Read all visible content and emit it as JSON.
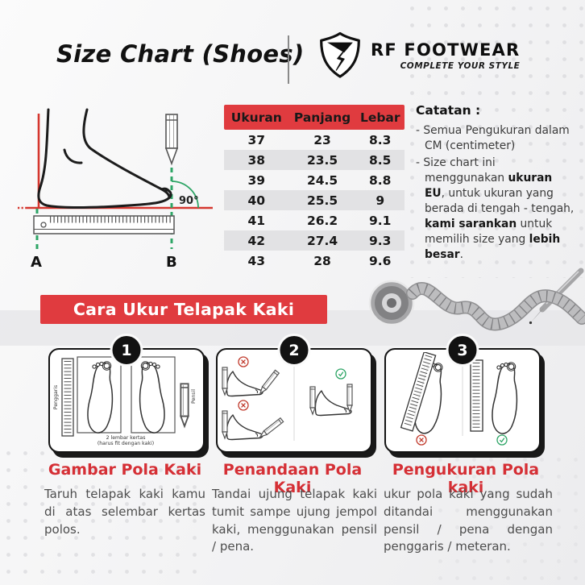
{
  "header": {
    "title": "Size Chart (Shoes)",
    "brand": "RF FOOTWEAR",
    "tagline": "COMPLETE YOUR STYLE"
  },
  "measure_diagram": {
    "angle_label": "90°",
    "point_a": "A",
    "point_b": "B"
  },
  "size_table": {
    "columns": [
      "Ukuran",
      "Panjang",
      "Lebar"
    ],
    "rows": [
      [
        "37",
        "23",
        "8.3"
      ],
      [
        "38",
        "23.5",
        "8.5"
      ],
      [
        "39",
        "24.5",
        "8.8"
      ],
      [
        "40",
        "25.5",
        "9"
      ],
      [
        "41",
        "26.2",
        "9.1"
      ],
      [
        "42",
        "27.4",
        "9.3"
      ],
      [
        "43",
        "28",
        "9.6"
      ]
    ]
  },
  "notes": {
    "title": "Catatan :",
    "items": [
      {
        "segments": [
          {
            "text": "Semua Pengukuran dalam CM (centimeter)",
            "bold": false
          }
        ]
      },
      {
        "segments": [
          {
            "text": "Size chart ini menggunakan ",
            "bold": false
          },
          {
            "text": "ukuran EU",
            "bold": true
          },
          {
            "text": ", untuk ukuran yang berada di tengah - tengah, ",
            "bold": false
          },
          {
            "text": "kami sarankan",
            "bold": true
          },
          {
            "text": " untuk memilih size yang ",
            "bold": false
          },
          {
            "text": "lebih besar",
            "bold": true
          },
          {
            "text": ".",
            "bold": false
          }
        ]
      }
    ]
  },
  "banner": {
    "title": "Cara Ukur Telapak Kaki"
  },
  "steps": [
    {
      "number": "1",
      "heading": "Gambar Pola Kaki",
      "body": "Taruh telapak kaki kamu di atas selembar kertas polos.",
      "ruler_label": "Penggaris",
      "pencil_label": "Pensil",
      "caption_line1": "2 lembar kertas",
      "caption_line2": "(harus fit dengan kaki)"
    },
    {
      "number": "2",
      "heading": "Penandaan Pola Kaki",
      "body": "Tandai ujung telapak kaki tumit sampe ujung jempol kaki, menggunakan pensil / pena."
    },
    {
      "number": "3",
      "heading": "Pengukuran Pola kaki",
      "body": "ukur pola kaki yang sudah ditandai menggunakan pensil / pena dengan penggaris / meteran."
    }
  ],
  "colors": {
    "accent_red": "#e03b3f",
    "heading_red": "#d52f35",
    "row_alt_gray": "#e2e2e4",
    "check_green": "#2ea566",
    "cross_red": "#c0392b"
  }
}
